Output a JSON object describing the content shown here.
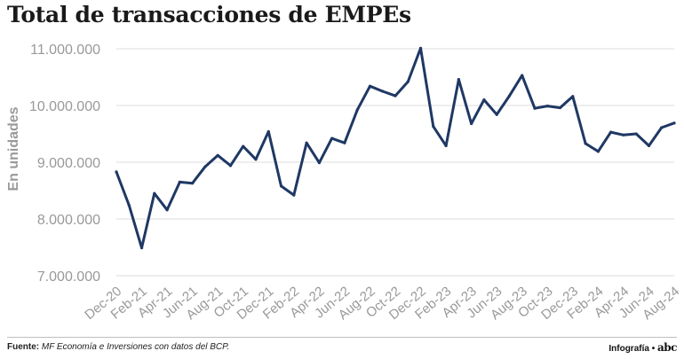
{
  "header": {
    "title": "Total de transacciones de EMPEs"
  },
  "footer": {
    "source_label": "Fuente:",
    "source_text": "MF Economía e Inversiones con datos del BCP.",
    "credit_label": "Infografía",
    "credit_separator": "•",
    "logo_text": "abc"
  },
  "colors": {
    "line": "#1f3864",
    "axis_text": "#999999",
    "grid": "#dddddd"
  },
  "chart_data": {
    "type": "line",
    "title": "Total de transacciones de EMPEs",
    "xlabel": "",
    "ylabel": "En unidades",
    "ylim": [
      7000000,
      11000000
    ],
    "yticks": [
      7000000,
      8000000,
      9000000,
      10000000,
      11000000
    ],
    "ytick_labels": [
      "7.000.000",
      "8.000.000",
      "9.000.000",
      "10.000.000",
      "11.000.000"
    ],
    "x": [
      "Dec-20",
      "Jan-21",
      "Feb-21",
      "Mar-21",
      "Apr-21",
      "May-21",
      "Jun-21",
      "Jul-21",
      "Aug-21",
      "Sep-21",
      "Oct-21",
      "Nov-21",
      "Dec-21",
      "Jan-22",
      "Feb-22",
      "Mar-22",
      "Apr-22",
      "May-22",
      "Jun-22",
      "Jul-22",
      "Aug-22",
      "Sep-22",
      "Oct-22",
      "Nov-22",
      "Dec-22",
      "Jan-23",
      "Feb-23",
      "Mar-23",
      "Apr-23",
      "May-23",
      "Jun-23",
      "Jul-23",
      "Aug-23",
      "Sep-23",
      "Oct-23",
      "Nov-23",
      "Dec-23",
      "Jan-24",
      "Feb-24",
      "Mar-24",
      "Apr-24",
      "May-24",
      "Jun-24",
      "Jul-24",
      "Aug-24"
    ],
    "x_tick_labels": [
      "Dec-20",
      "Feb-21",
      "Apr-21",
      "Jun-21",
      "Aug-21",
      "Oct-21",
      "Dec-21",
      "Feb-22",
      "Apr-22",
      "Jun-22",
      "Aug-22",
      "Oct-22",
      "Dec-22",
      "Feb-23",
      "Apr-23",
      "Jun-23",
      "Aug-23",
      "Oct-23",
      "Dec-23",
      "Feb-24",
      "Apr-24",
      "Jun-24",
      "Aug-24"
    ],
    "series": [
      {
        "name": "Total de transacciones",
        "values": [
          8830000,
          8240000,
          7490000,
          8450000,
          8160000,
          8650000,
          8630000,
          8920000,
          9120000,
          8940000,
          9280000,
          9050000,
          9540000,
          8580000,
          8420000,
          9340000,
          8990000,
          9420000,
          9340000,
          9920000,
          10340000,
          10250000,
          10170000,
          10420000,
          11010000,
          9630000,
          9290000,
          10460000,
          9680000,
          10100000,
          9840000,
          10170000,
          10530000,
          9950000,
          9990000,
          9960000,
          10160000,
          9330000,
          9190000,
          9530000,
          9480000,
          9500000,
          9290000,
          9610000,
          9690000
        ]
      }
    ]
  }
}
